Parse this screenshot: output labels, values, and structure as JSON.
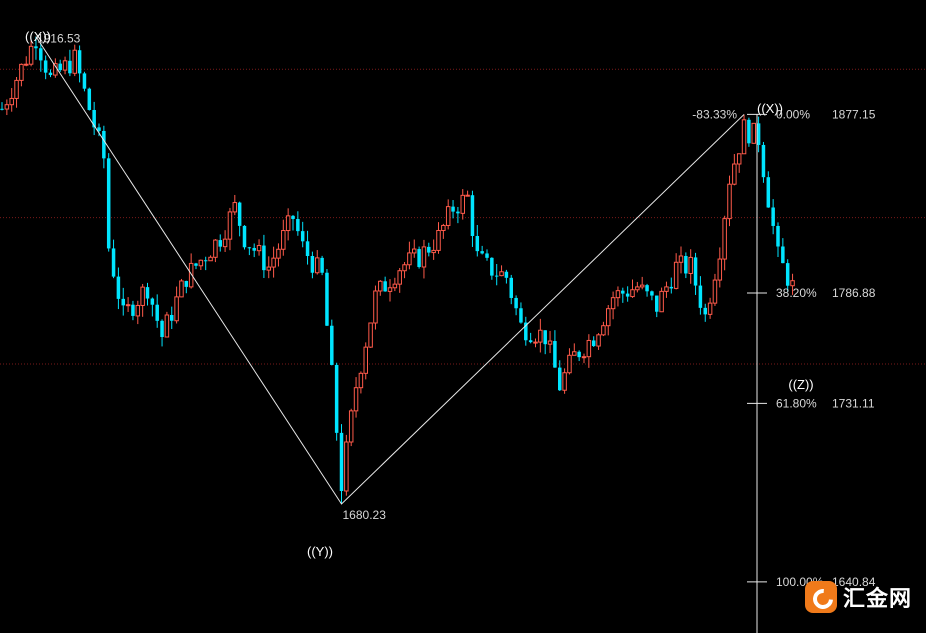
{
  "chart_data": {
    "type": "candlestick",
    "y_range": [
      1615,
      1935
    ],
    "colors": {
      "up": "#ff5a4a",
      "down": "#00e5ff",
      "grid": "#7a1a1a",
      "zigzag": "#e8e8e8",
      "fib_axis": "#e8e8e8"
    },
    "horizontal_grid_prices": [
      1900,
      1825,
      1751
    ],
    "fib_axis_range": [
      1640.84,
      1877.15
    ],
    "candles": [],
    "zigzag_points": [
      {
        "bar": 7,
        "price": 1916.53
      },
      {
        "bar": 70,
        "price": 1680.23
      },
      {
        "bar": 153,
        "price": 1877.15
      }
    ],
    "price_annotations": [
      {
        "text": "1916.53",
        "bar": 7,
        "price": 1916.53
      },
      {
        "text": "1680.23",
        "bar": 70,
        "price": 1680.23
      }
    ],
    "wave_labels": [
      {
        "text": "((X))",
        "bar": 7,
        "price": 1928
      },
      {
        "text": "((Y))",
        "bar": 68,
        "price": 1668
      },
      {
        "text": "((X))",
        "bar": 157,
        "price": 1890
      },
      {
        "text": "((Z))",
        "bar": 163,
        "price": 1768
      }
    ],
    "retrace_label": {
      "text": "-83.33%"
    },
    "fib_levels": [
      {
        "pct": "0.00%",
        "price_text": "1877.15",
        "price": 1877.15
      },
      {
        "pct": "38.20%",
        "price_text": "1786.88",
        "price": 1786.88
      },
      {
        "pct": "61.80%",
        "price_text": "1731.11",
        "price": 1731.11
      },
      {
        "pct": "100.00%",
        "price_text": "1640.84",
        "price": 1640.84
      }
    ]
  },
  "watermark": {
    "text": "汇金网",
    "icon": "huijin-logo-icon"
  }
}
